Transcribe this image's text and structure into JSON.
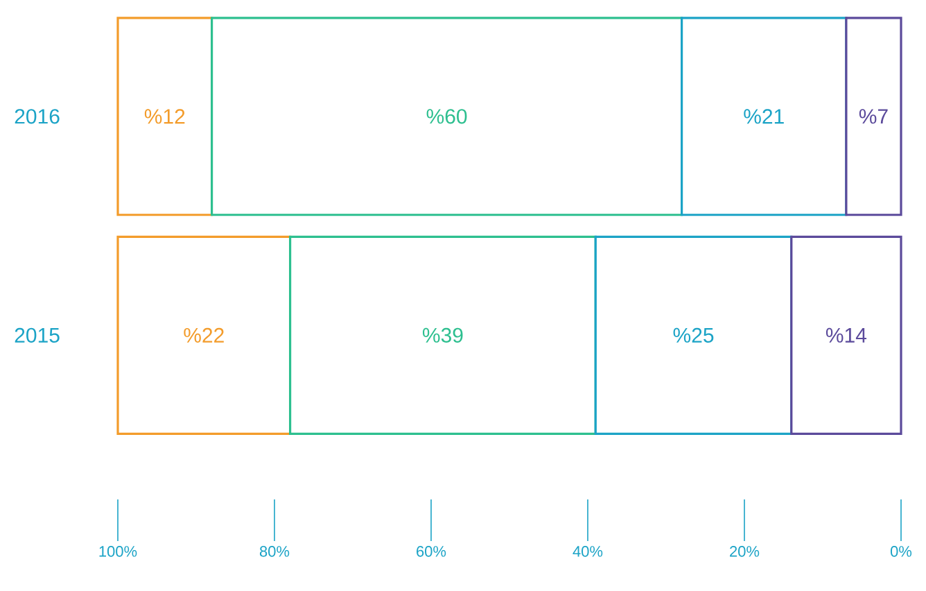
{
  "chart_data": {
    "type": "bar",
    "orientation": "horizontal",
    "stacked": true,
    "categories": [
      "2016",
      "2015"
    ],
    "xlim": [
      100,
      0
    ],
    "xticks": [
      {
        "value": 100,
        "label": "100%"
      },
      {
        "value": 80,
        "label": "80%"
      },
      {
        "value": 60,
        "label": "60%"
      },
      {
        "value": 40,
        "label": "40%"
      },
      {
        "value": 20,
        "label": "20%"
      },
      {
        "value": 0,
        "label": "0%"
      }
    ],
    "series": [
      {
        "color": "#5b4a9b",
        "values": [
          7,
          14
        ],
        "value_labels": [
          "%7",
          "%14"
        ]
      },
      {
        "color": "#1ba3c6",
        "values": [
          21,
          25
        ],
        "value_labels": [
          "%21",
          "%25"
        ]
      },
      {
        "color": "#2dbf8f",
        "values": [
          60,
          39
        ],
        "value_labels": [
          "%60",
          "%39"
        ]
      },
      {
        "color": "#f39c2b",
        "values": [
          12,
          22
        ],
        "value_labels": [
          "%12",
          "%22"
        ]
      }
    ],
    "grid": false
  }
}
